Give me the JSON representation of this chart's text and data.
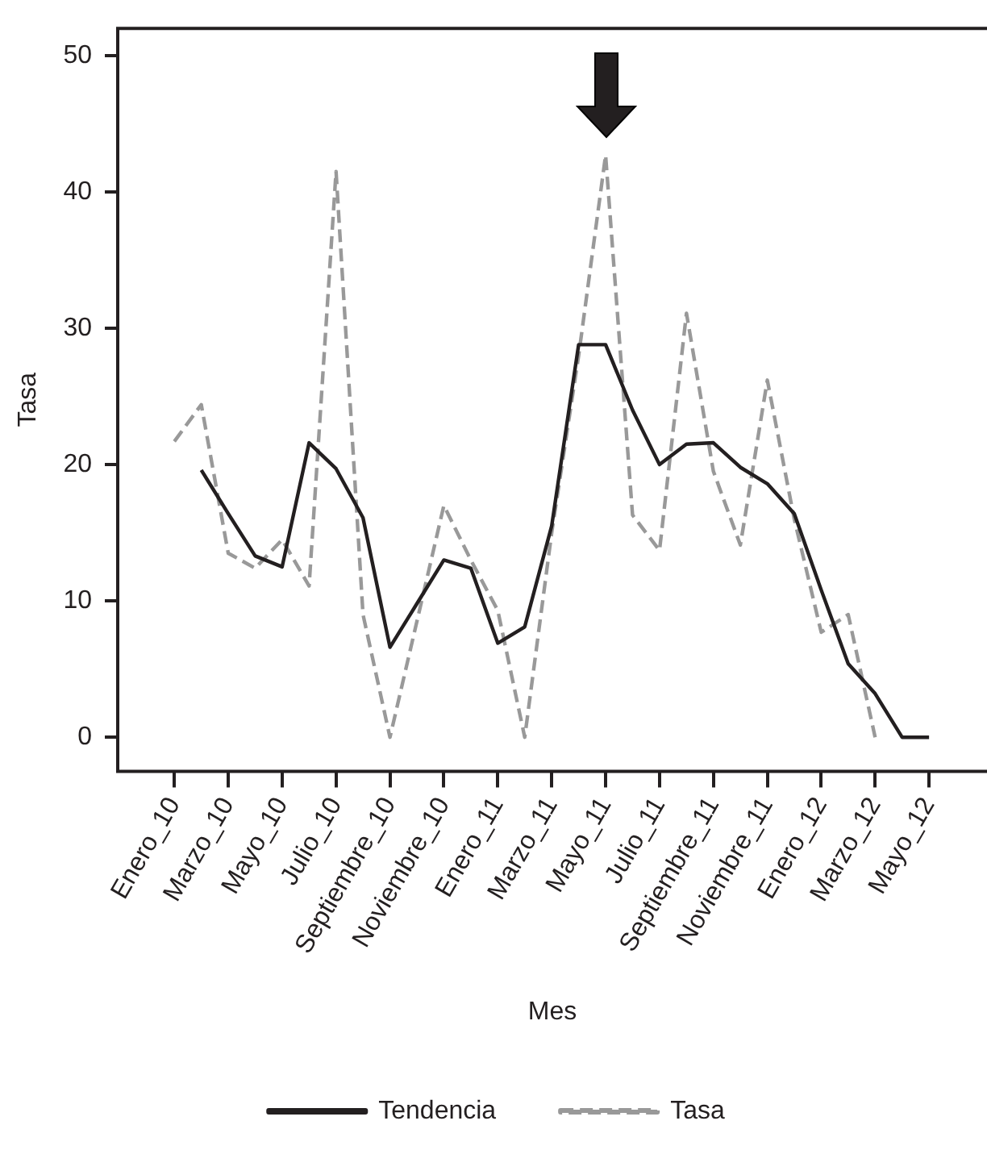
{
  "chart_data": {
    "type": "line",
    "xlabel": "Mes",
    "ylabel": "Tasa",
    "categories": [
      "Enero_10",
      null,
      "Marzo_10",
      null,
      "Mayo_10",
      null,
      "Julio_10",
      null,
      "Septiembre_10",
      null,
      "Noviembre_10",
      null,
      "Enero_11",
      null,
      "Marzo_11",
      null,
      "Mayo_11",
      null,
      "Julio_11",
      null,
      "Septiembre_11",
      null,
      "Noviembre_11",
      null,
      "Enero_12",
      null,
      "Marzo_12",
      null,
      "Mayo_12"
    ],
    "series": [
      {
        "name": "Tendencia",
        "color": "#231f20",
        "line_style": "solid",
        "values": [
          null,
          19.6,
          16.4,
          13.3,
          12.5,
          21.6,
          19.7,
          16.1,
          6.6,
          9.8,
          13,
          12.4,
          6.9,
          8.1,
          15.5,
          28.8,
          28.8,
          24,
          20,
          21.5,
          21.6,
          19.8,
          18.6,
          16.4,
          10.8,
          5.4,
          3.2,
          0,
          0
        ]
      },
      {
        "name": "Tasa",
        "color": "#999999",
        "line_style": "dashed",
        "values": [
          21.7,
          24.4,
          13.5,
          12.4,
          14.5,
          11.1,
          41.5,
          9,
          0,
          8.5,
          17,
          13,
          9.3,
          0,
          15,
          28,
          42.7,
          16.3,
          13.7,
          31.1,
          19.5,
          14.1,
          26.2,
          16,
          7.7,
          9,
          0,
          null,
          null
        ]
      }
    ],
    "ylim": [
      -2.5,
      52
    ],
    "yticks": [
      0,
      10,
      20,
      30,
      40,
      50
    ],
    "grid": false,
    "legend": "bottom",
    "marker": "none"
  }
}
